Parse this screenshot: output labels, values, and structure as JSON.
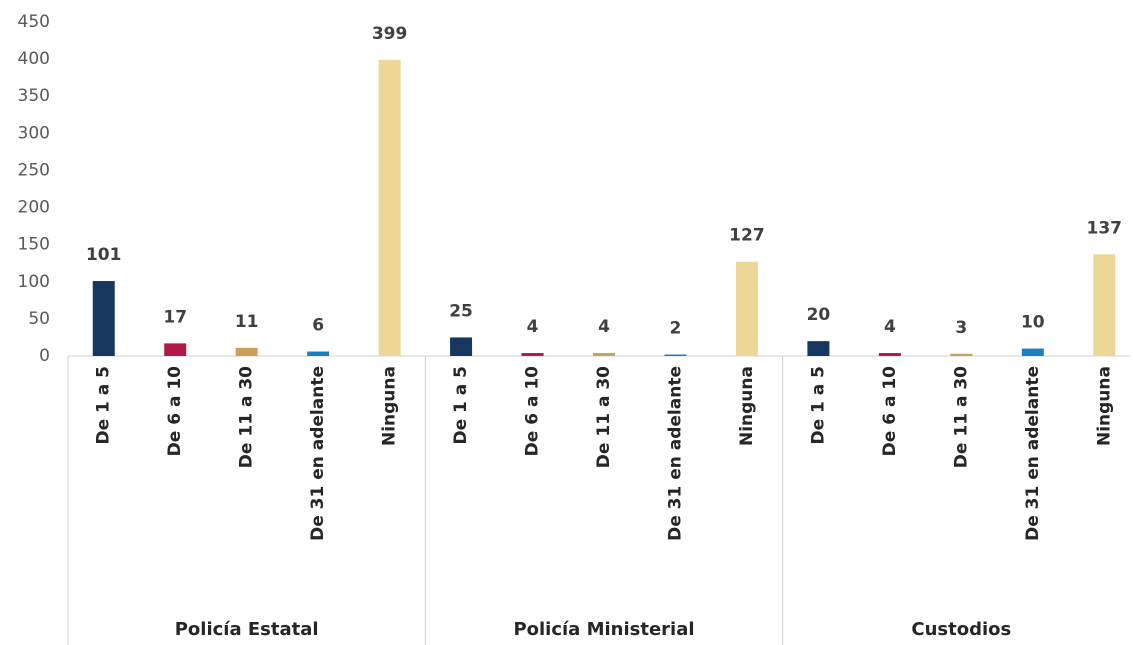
{
  "chart_data": {
    "type": "bar",
    "categories": [
      "De 1 a 5",
      "De 6 a 10",
      "De 11 a 30",
      "De 31 en adelante",
      "Ninguna"
    ],
    "colors": [
      "#17375e",
      "#b01a47",
      "#c9a15a",
      "#1b7fc4",
      "#ecd797"
    ],
    "groups": [
      {
        "name": "Policía Estatal",
        "values": [
          101,
          17,
          11,
          6,
          399
        ]
      },
      {
        "name": "Policía Ministerial",
        "values": [
          25,
          4,
          4,
          2,
          127
        ]
      },
      {
        "name": "Custodios",
        "values": [
          20,
          4,
          3,
          10,
          137
        ]
      }
    ],
    "ylim": [
      0,
      450
    ],
    "yticks": [
      0,
      50,
      100,
      150,
      200,
      250,
      300,
      350,
      400,
      450
    ],
    "grid": false
  }
}
